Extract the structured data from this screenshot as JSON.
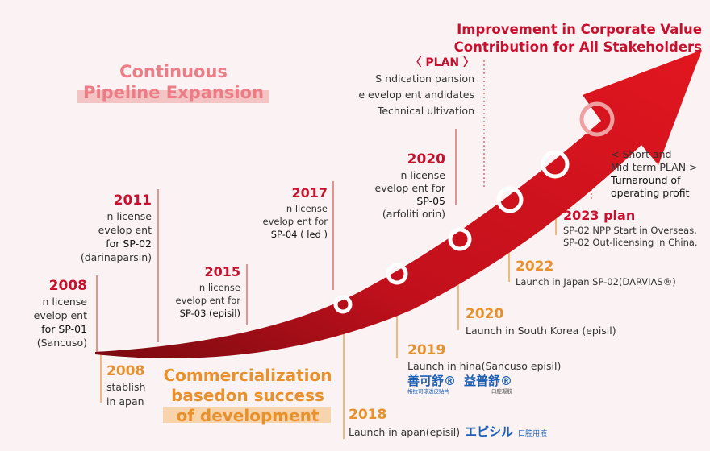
{
  "header": {
    "title_line1": "Improvement in Corporate Value",
    "title_line2": "Contribution for All Stakeholders"
  },
  "pipeline": {
    "line1": "Continuous",
    "line2": "Pipeline Expansion"
  },
  "commercialization": {
    "line1": "Commercialization",
    "line2": "basedon success",
    "line3": "of development"
  },
  "plan": {
    "label": "〈 PLAN 〉",
    "line1": "S        ndication    pansion",
    "line2": "e     evelop  ent  andidates",
    "line3": "Technical   ultivation"
  },
  "mid_term": {
    "line1": "< Short and",
    "line2": "Mid-term PLAN >",
    "line3": "Turnaround of",
    "line4": "operating profit"
  },
  "upper_milestones": [
    {
      "year": "2008",
      "l1": "n license",
      "l2": "evelop    ent",
      "l3": "for SP-01",
      "l4": "(Sancuso)"
    },
    {
      "year": "2011",
      "l1": "n license",
      "l2": "evelop    ent",
      "l3": "for SP-02",
      "l4": "(darinaparsin)"
    },
    {
      "year": "2015",
      "l1": "n license",
      "l2": "evelop  ent for",
      "l3": "SP-03 (episil)"
    },
    {
      "year": "2017",
      "l1": "n license",
      "l2": "evelop    ent for",
      "l3": "SP-04 (    led     )"
    },
    {
      "year": "2020",
      "l1": "n license",
      "l2": "evelop    ent for",
      "l3": "SP-05",
      "l4": "(arfoliti  orin)"
    }
  ],
  "lower_milestones": [
    {
      "year": "2008",
      "l1": "stablish",
      "l2": "in    apan"
    },
    {
      "year": "2018",
      "l1": "Launch in    apan(episil)",
      "brand": "エピシル",
      "brand_sub": "口腔用液"
    },
    {
      "year": "2019",
      "l1": "Launch in    hina(Sancuso  episil)",
      "brand1": "善可舒®",
      "brand1_sub": "格拉司琼透皮贴片",
      "brand2": "益普舒®",
      "brand2_sub": "口腔凝胶"
    },
    {
      "year": "2020",
      "l1": "Launch in South Korea (episil)"
    },
    {
      "year": "2022",
      "l1": "Launch in Japan SP-02(DARVIAS®)"
    },
    {
      "year": "2023 plan",
      "l1": "SP-02 NPP Start in Overseas.",
      "l2": "SP-02 Out-licensing in China."
    }
  ]
}
